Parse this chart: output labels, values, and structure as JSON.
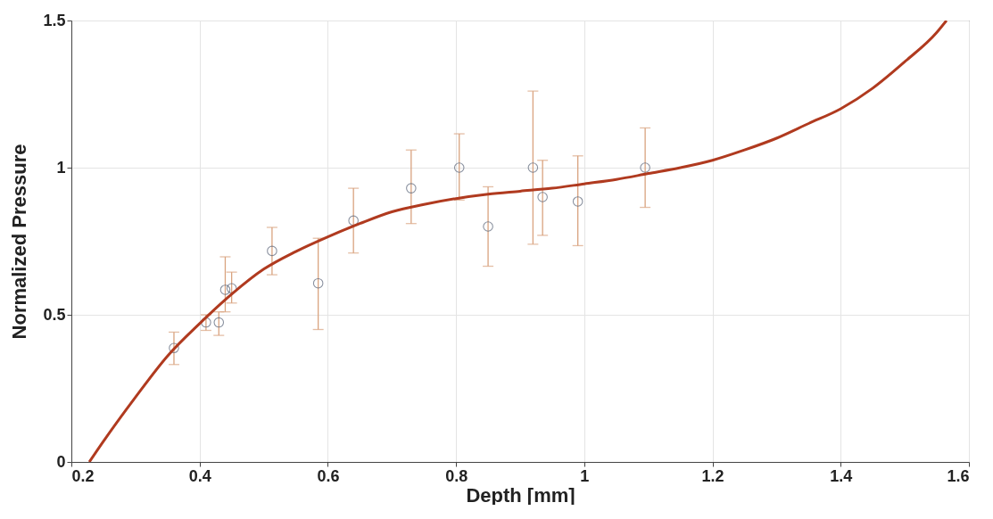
{
  "chart_data": {
    "type": "scatter",
    "xlabel": "Depth [mm]",
    "ylabel": "Normalized Pressure",
    "xlim": [
      0.2,
      1.6
    ],
    "ylim": [
      0,
      1.5
    ],
    "xticks": [
      0.2,
      0.4,
      0.6,
      0.8,
      1,
      1.2,
      1.4,
      1.6
    ],
    "yticks": [
      0,
      0.5,
      1,
      1.5
    ],
    "grid": true,
    "series": [
      {
        "marker": "circle",
        "color": "#5a6478",
        "x": [
          0.36,
          0.41,
          0.43,
          0.44,
          0.45,
          0.513,
          0.585,
          0.64,
          0.73,
          0.805,
          0.85,
          0.92,
          0.935,
          0.99,
          1.095
        ],
        "values": [
          0.387,
          0.474,
          0.474,
          0.585,
          0.59,
          0.717,
          0.607,
          0.82,
          0.93,
          1.0,
          0.8,
          1.0,
          0.9,
          0.885,
          1.0
        ],
        "errors": [
          [
            0.331,
            0.441
          ],
          [
            0.447,
            0.5
          ],
          [
            0.43,
            0.51
          ],
          [
            0.51,
            0.697
          ],
          [
            0.54,
            0.645
          ],
          [
            0.636,
            0.797
          ],
          [
            0.45,
            0.76
          ],
          [
            0.71,
            0.93
          ],
          [
            0.81,
            1.06
          ],
          [
            0.89,
            1.115
          ],
          [
            0.665,
            0.935
          ],
          [
            0.74,
            1.26
          ],
          [
            0.77,
            1.025
          ],
          [
            0.735,
            1.04
          ],
          [
            0.865,
            1.135
          ]
        ]
      },
      {
        "type": "line",
        "color": "#b03a1f",
        "x": [
          0.228,
          0.25,
          0.3,
          0.35,
          0.4,
          0.45,
          0.5,
          0.55,
          0.6,
          0.65,
          0.7,
          0.75,
          0.8,
          0.85,
          0.9,
          0.95,
          1.0,
          1.05,
          1.1,
          1.15,
          1.2,
          1.25,
          1.3,
          1.35,
          1.4,
          1.45,
          1.5,
          1.55,
          1.565
        ],
        "values": [
          0,
          0.07,
          0.22,
          0.36,
          0.47,
          0.57,
          0.655,
          0.715,
          0.765,
          0.81,
          0.85,
          0.875,
          0.895,
          0.91,
          0.92,
          0.93,
          0.945,
          0.96,
          0.98,
          1.0,
          1.025,
          1.06,
          1.1,
          1.15,
          1.2,
          1.27,
          1.36,
          1.46,
          1.5
        ]
      }
    ]
  }
}
